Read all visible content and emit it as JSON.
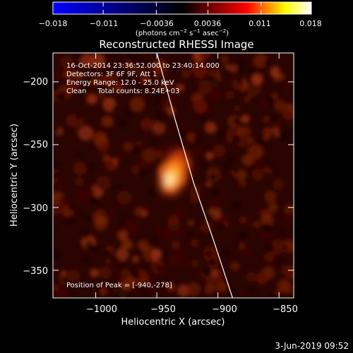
{
  "colorbar": {
    "ticks": [
      "−0.018",
      "−0.011",
      "−0.0036",
      "0.0036",
      "0.011",
      "0.018"
    ],
    "tick_values": [
      -0.018,
      -0.011,
      -0.0036,
      0.0036,
      0.011,
      0.018
    ],
    "range": [
      -0.018,
      0.018
    ],
    "unit_main": "(photons cm",
    "unit_exp1": "−2",
    "unit_mid": " s",
    "unit_exp2": "−1",
    "unit_end": " asec",
    "unit_exp3": "−2",
    "unit_close": ")",
    "colormap": [
      "#0000ff",
      "#000000",
      "#ff0000",
      "#ffff00",
      "#ffffff"
    ]
  },
  "annotations": {
    "time": "16-Oct-2014 23:36:52.000 to 23:40:14.000",
    "detectors": "Detectors: 3F 6F 9F, Att 1",
    "energy": "Energy Range: 12.0 - 25.0 keV",
    "clean": "Clean     Total counts: 8.24E+03",
    "peak": "Position of Peak = [-940,-278]"
  },
  "footer": {
    "date": "3-Jun-2019 09:52"
  },
  "chart_data": {
    "type": "heatmap",
    "title": "Reconstructed RHESSI Image",
    "xlabel": "Heliocentric X (arcsec)",
    "ylabel": "Heliocentric Y (arcsec)",
    "xlim": [
      -1035,
      -838
    ],
    "ylim": [
      -372,
      -177
    ],
    "x_ticks": [
      -1000,
      -950,
      -900,
      -850
    ],
    "y_ticks": [
      -200,
      -250,
      -300,
      -350
    ],
    "x_tick_labels": [
      "−1000",
      "−950",
      "−900",
      "−850"
    ],
    "y_tick_labels": [
      "−200",
      "−250",
      "−300",
      "−350"
    ],
    "peak_position": [
      -940,
      -278
    ],
    "peak_value": 0.018,
    "limb_curve": [
      [
        -950,
        -177
      ],
      [
        -935,
        -230
      ],
      [
        -920,
        -280
      ],
      [
        -904,
        -325
      ],
      [
        -888,
        -372
      ]
    ],
    "grid": false,
    "legend": "none"
  }
}
